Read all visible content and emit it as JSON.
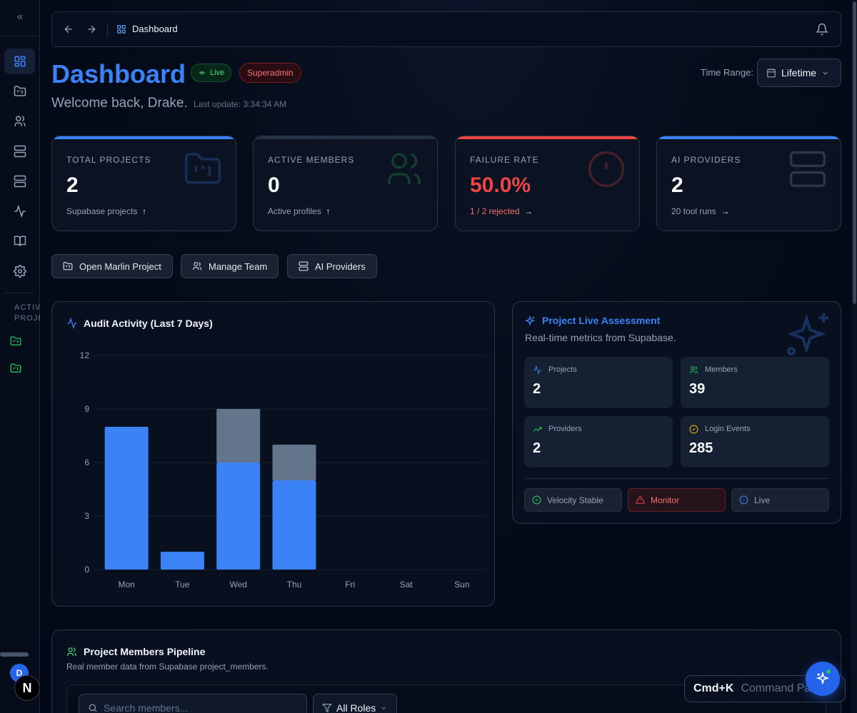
{
  "topbar": {
    "breadcrumb": "Dashboard"
  },
  "header": {
    "title": "Dashboard",
    "live_badge": "Live",
    "role_badge": "Superadmin",
    "welcome": "Welcome back, Drake.",
    "last_update": "Last update: 3:34:34 AM",
    "time_range_label": "Time Range:",
    "time_range_value": "Lifetime"
  },
  "sidebar": {
    "active_projects_label": "ACTIVE PROJECTS",
    "avatar_initial": "D"
  },
  "stats": [
    {
      "label": "TOTAL PROJECTS",
      "value": "2",
      "sub": "Supabase projects",
      "sub_icon": "↑",
      "accent": "#3b82f6",
      "icon": "folder-kanban-icon"
    },
    {
      "label": "ACTIVE MEMBERS",
      "value": "0",
      "sub": "Active profiles",
      "sub_icon": "↑",
      "accent": "#243044",
      "icon": "users-icon"
    },
    {
      "label": "FAILURE RATE",
      "value": "50.0%",
      "sub": "1 / 2 rejected",
      "sub_icon": "→",
      "accent": "#ef4444",
      "icon": "alert-circle-icon"
    },
    {
      "label": "AI PROVIDERS",
      "value": "2",
      "sub": "20 tool runs",
      "sub_icon": "→",
      "accent": "#3b82f6",
      "icon": "server-icon"
    }
  ],
  "quick_actions": [
    "Open Marlin Project",
    "Manage Team",
    "AI Providers"
  ],
  "chart_data": {
    "type": "bar",
    "title": "Audit Activity (Last 7 Days)",
    "categories": [
      "Mon",
      "Tue",
      "Wed",
      "Thu",
      "Fri",
      "Sat",
      "Sun"
    ],
    "series": [
      {
        "values": [
          8,
          1,
          6,
          5,
          0,
          0,
          0
        ],
        "color": "#3b82f6"
      },
      {
        "values": [
          0,
          0,
          3,
          2,
          0,
          0,
          0
        ],
        "color": "#64748b"
      }
    ],
    "stacked": true,
    "ylim": [
      0,
      12
    ],
    "yticks": [
      0,
      3,
      6,
      9,
      12
    ],
    "grid": true
  },
  "assessment": {
    "title": "Project Live Assessment",
    "subtitle": "Real-time metrics from Supabase.",
    "metrics": [
      {
        "label": "Projects",
        "value": "2",
        "icon": "activity-icon",
        "color": "#3b82f6"
      },
      {
        "label": "Members",
        "value": "39",
        "icon": "users-icon",
        "color": "#22c55e"
      },
      {
        "label": "Providers",
        "value": "2",
        "icon": "trending-up-icon",
        "color": "#22c55e"
      },
      {
        "label": "Login Events",
        "value": "285",
        "icon": "check-circle-icon",
        "color": "#eab308"
      }
    ],
    "statuses": [
      {
        "label": "Velocity Stable",
        "color": "#22c55e"
      },
      {
        "label": "Monitor",
        "color": "#ef4444"
      },
      {
        "label": "Live",
        "color": "#3b82f6"
      }
    ]
  },
  "pipeline": {
    "title": "Project Members Pipeline",
    "subtitle": "Real member data from Supabase project_members.",
    "search_placeholder": "Search members...",
    "role_filter": "All Roles"
  },
  "command_palette": {
    "shortcut": "Cmd+K",
    "label": "Command Palette"
  }
}
